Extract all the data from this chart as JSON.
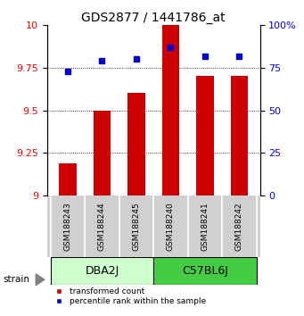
{
  "title": "GDS2877 / 1441786_at",
  "samples": [
    "GSM188243",
    "GSM188244",
    "GSM188245",
    "GSM188240",
    "GSM188241",
    "GSM188242"
  ],
  "transformed_counts": [
    9.19,
    9.5,
    9.6,
    10.0,
    9.7,
    9.7
  ],
  "percentile_ranks": [
    73,
    79,
    80,
    87,
    82,
    82
  ],
  "ylim_left": [
    9.0,
    10.0
  ],
  "ylim_right": [
    0,
    100
  ],
  "yticks_left": [
    9.0,
    9.25,
    9.5,
    9.75,
    10.0
  ],
  "yticks_right": [
    0,
    25,
    50,
    75,
    100
  ],
  "bar_color": "#cc0000",
  "dot_color": "#0000cc",
  "bar_width": 0.5,
  "groups": [
    {
      "label": "DBA2J",
      "indices": [
        0,
        1,
        2
      ],
      "color": "#ccffcc"
    },
    {
      "label": "C57BL6J",
      "indices": [
        3,
        4,
        5
      ],
      "color": "#44cc44"
    }
  ],
  "strain_label": "strain",
  "legend_red": "transformed count",
  "legend_blue": "percentile rank within the sample",
  "background_color": "#ffffff",
  "label_area_color": "#d0d0d0",
  "title_fontsize": 10,
  "tick_fontsize": 8,
  "sample_fontsize": 6.5,
  "group_fontsize": 9
}
